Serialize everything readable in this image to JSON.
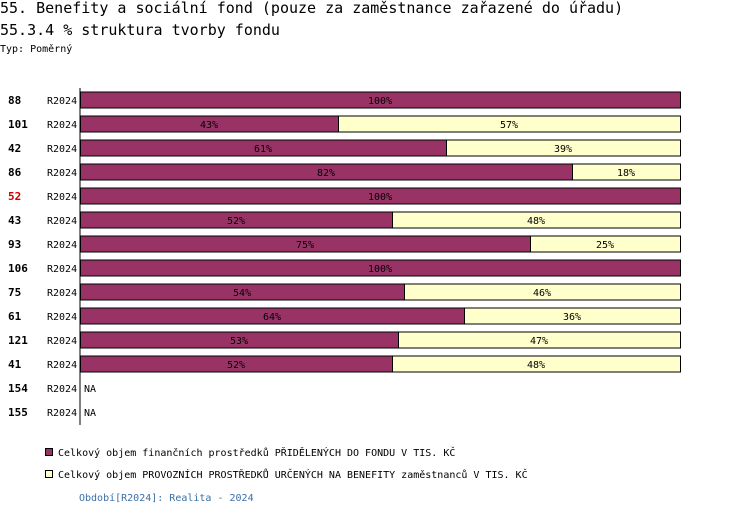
{
  "header": {
    "title": "55. Benefity a sociální fond (pouze za zaměstnance zařazené do úřadu)",
    "subtitle": "55.3.4 % struktura tvorby fondu",
    "type_label": "Typ: Poměrný"
  },
  "colors": {
    "series1": "#993366",
    "series2": "#ffffcc",
    "highlight_id": "#cc0000",
    "footnote": "#3a6fa8"
  },
  "chart_data": {
    "type": "bar",
    "orientation": "horizontal",
    "stacked": true,
    "percent": true,
    "xlim": [
      0,
      100
    ],
    "categories": [
      "88",
      "101",
      "42",
      "86",
      "52",
      "43",
      "93",
      "106",
      "75",
      "61",
      "121",
      "41",
      "154",
      "155"
    ],
    "periods": [
      "R2024",
      "R2024",
      "R2024",
      "R2024",
      "R2024",
      "R2024",
      "R2024",
      "R2024",
      "R2024",
      "R2024",
      "R2024",
      "R2024",
      "R2024",
      "R2024"
    ],
    "highlighted_category": "52",
    "na_label": "NA",
    "series": [
      {
        "name": "Celkový objem finančních prostředků PŘIDĚLENÝCH DO FONDU V TIS. KČ",
        "values": [
          100,
          43,
          61,
          82,
          100,
          52,
          75,
          100,
          54,
          64,
          53,
          52,
          null,
          null
        ]
      },
      {
        "name": "Celkový objem PROVOZNÍCH PROSTŘEDKŮ URČENÝCH NA BENEFITY zaměstnanců V TIS. KČ",
        "values": [
          0,
          57,
          39,
          18,
          0,
          48,
          25,
          0,
          46,
          36,
          47,
          48,
          null,
          null
        ]
      }
    ],
    "legend_position": "bottom-left"
  },
  "footer": {
    "note": "Období[R2024]: Realita - 2024"
  }
}
